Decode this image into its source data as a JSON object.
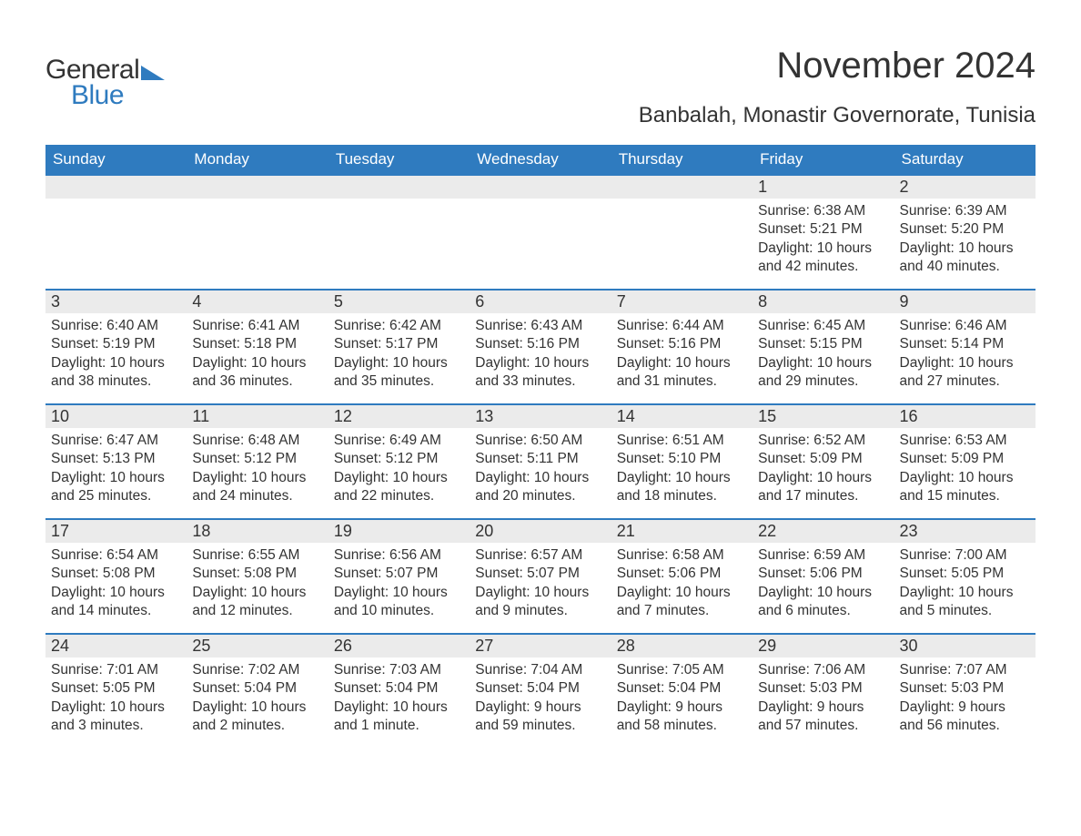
{
  "logo": {
    "text1": "General",
    "text2": "Blue",
    "brand_color": "#2f7bbf"
  },
  "title": "November 2024",
  "location": "Banbalah, Monastir Governorate, Tunisia",
  "colors": {
    "header_bg": "#2f7bbf",
    "header_text": "#ffffff",
    "daynum_bg": "#ebebeb",
    "text": "#333333",
    "rule": "#2f7bbf",
    "page_bg": "#ffffff"
  },
  "typography": {
    "title_fontsize": 40,
    "location_fontsize": 24,
    "dayhead_fontsize": 17,
    "daynum_fontsize": 18,
    "body_fontsize": 15.5,
    "font_family": "Arial"
  },
  "calendar": {
    "type": "table",
    "columns": [
      "Sunday",
      "Monday",
      "Tuesday",
      "Wednesday",
      "Thursday",
      "Friday",
      "Saturday"
    ],
    "weeks": [
      [
        {
          "blank": true
        },
        {
          "blank": true
        },
        {
          "blank": true
        },
        {
          "blank": true
        },
        {
          "blank": true
        },
        {
          "day": "1",
          "sunrise": "Sunrise: 6:38 AM",
          "sunset": "Sunset: 5:21 PM",
          "daylight": "Daylight: 10 hours and 42 minutes."
        },
        {
          "day": "2",
          "sunrise": "Sunrise: 6:39 AM",
          "sunset": "Sunset: 5:20 PM",
          "daylight": "Daylight: 10 hours and 40 minutes."
        }
      ],
      [
        {
          "day": "3",
          "sunrise": "Sunrise: 6:40 AM",
          "sunset": "Sunset: 5:19 PM",
          "daylight": "Daylight: 10 hours and 38 minutes."
        },
        {
          "day": "4",
          "sunrise": "Sunrise: 6:41 AM",
          "sunset": "Sunset: 5:18 PM",
          "daylight": "Daylight: 10 hours and 36 minutes."
        },
        {
          "day": "5",
          "sunrise": "Sunrise: 6:42 AM",
          "sunset": "Sunset: 5:17 PM",
          "daylight": "Daylight: 10 hours and 35 minutes."
        },
        {
          "day": "6",
          "sunrise": "Sunrise: 6:43 AM",
          "sunset": "Sunset: 5:16 PM",
          "daylight": "Daylight: 10 hours and 33 minutes."
        },
        {
          "day": "7",
          "sunrise": "Sunrise: 6:44 AM",
          "sunset": "Sunset: 5:16 PM",
          "daylight": "Daylight: 10 hours and 31 minutes."
        },
        {
          "day": "8",
          "sunrise": "Sunrise: 6:45 AM",
          "sunset": "Sunset: 5:15 PM",
          "daylight": "Daylight: 10 hours and 29 minutes."
        },
        {
          "day": "9",
          "sunrise": "Sunrise: 6:46 AM",
          "sunset": "Sunset: 5:14 PM",
          "daylight": "Daylight: 10 hours and 27 minutes."
        }
      ],
      [
        {
          "day": "10",
          "sunrise": "Sunrise: 6:47 AM",
          "sunset": "Sunset: 5:13 PM",
          "daylight": "Daylight: 10 hours and 25 minutes."
        },
        {
          "day": "11",
          "sunrise": "Sunrise: 6:48 AM",
          "sunset": "Sunset: 5:12 PM",
          "daylight": "Daylight: 10 hours and 24 minutes."
        },
        {
          "day": "12",
          "sunrise": "Sunrise: 6:49 AM",
          "sunset": "Sunset: 5:12 PM",
          "daylight": "Daylight: 10 hours and 22 minutes."
        },
        {
          "day": "13",
          "sunrise": "Sunrise: 6:50 AM",
          "sunset": "Sunset: 5:11 PM",
          "daylight": "Daylight: 10 hours and 20 minutes."
        },
        {
          "day": "14",
          "sunrise": "Sunrise: 6:51 AM",
          "sunset": "Sunset: 5:10 PM",
          "daylight": "Daylight: 10 hours and 18 minutes."
        },
        {
          "day": "15",
          "sunrise": "Sunrise: 6:52 AM",
          "sunset": "Sunset: 5:09 PM",
          "daylight": "Daylight: 10 hours and 17 minutes."
        },
        {
          "day": "16",
          "sunrise": "Sunrise: 6:53 AM",
          "sunset": "Sunset: 5:09 PM",
          "daylight": "Daylight: 10 hours and 15 minutes."
        }
      ],
      [
        {
          "day": "17",
          "sunrise": "Sunrise: 6:54 AM",
          "sunset": "Sunset: 5:08 PM",
          "daylight": "Daylight: 10 hours and 14 minutes."
        },
        {
          "day": "18",
          "sunrise": "Sunrise: 6:55 AM",
          "sunset": "Sunset: 5:08 PM",
          "daylight": "Daylight: 10 hours and 12 minutes."
        },
        {
          "day": "19",
          "sunrise": "Sunrise: 6:56 AM",
          "sunset": "Sunset: 5:07 PM",
          "daylight": "Daylight: 10 hours and 10 minutes."
        },
        {
          "day": "20",
          "sunrise": "Sunrise: 6:57 AM",
          "sunset": "Sunset: 5:07 PM",
          "daylight": "Daylight: 10 hours and 9 minutes."
        },
        {
          "day": "21",
          "sunrise": "Sunrise: 6:58 AM",
          "sunset": "Sunset: 5:06 PM",
          "daylight": "Daylight: 10 hours and 7 minutes."
        },
        {
          "day": "22",
          "sunrise": "Sunrise: 6:59 AM",
          "sunset": "Sunset: 5:06 PM",
          "daylight": "Daylight: 10 hours and 6 minutes."
        },
        {
          "day": "23",
          "sunrise": "Sunrise: 7:00 AM",
          "sunset": "Sunset: 5:05 PM",
          "daylight": "Daylight: 10 hours and 5 minutes."
        }
      ],
      [
        {
          "day": "24",
          "sunrise": "Sunrise: 7:01 AM",
          "sunset": "Sunset: 5:05 PM",
          "daylight": "Daylight: 10 hours and 3 minutes."
        },
        {
          "day": "25",
          "sunrise": "Sunrise: 7:02 AM",
          "sunset": "Sunset: 5:04 PM",
          "daylight": "Daylight: 10 hours and 2 minutes."
        },
        {
          "day": "26",
          "sunrise": "Sunrise: 7:03 AM",
          "sunset": "Sunset: 5:04 PM",
          "daylight": "Daylight: 10 hours and 1 minute."
        },
        {
          "day": "27",
          "sunrise": "Sunrise: 7:04 AM",
          "sunset": "Sunset: 5:04 PM",
          "daylight": "Daylight: 9 hours and 59 minutes."
        },
        {
          "day": "28",
          "sunrise": "Sunrise: 7:05 AM",
          "sunset": "Sunset: 5:04 PM",
          "daylight": "Daylight: 9 hours and 58 minutes."
        },
        {
          "day": "29",
          "sunrise": "Sunrise: 7:06 AM",
          "sunset": "Sunset: 5:03 PM",
          "daylight": "Daylight: 9 hours and 57 minutes."
        },
        {
          "day": "30",
          "sunrise": "Sunrise: 7:07 AM",
          "sunset": "Sunset: 5:03 PM",
          "daylight": "Daylight: 9 hours and 56 minutes."
        }
      ]
    ]
  }
}
